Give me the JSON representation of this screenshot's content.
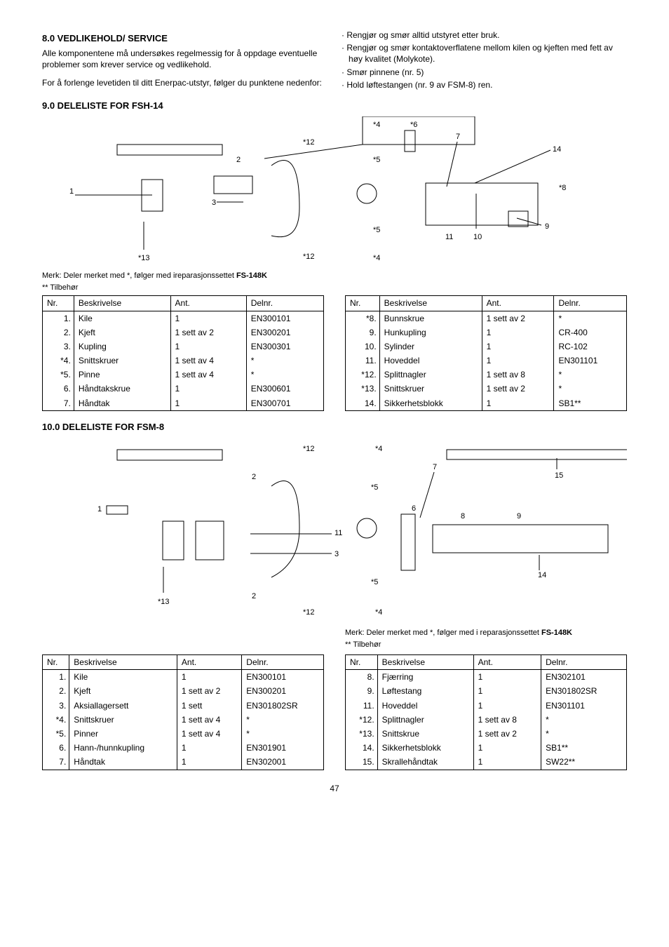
{
  "page_number": "47",
  "top": {
    "left": {
      "heading": "8.0 VEDLIKEHOLD/ SERVICE",
      "p1": "Alle komponentene må undersøkes regelmessig for å oppdage eventuelle problemer som krever service og vedlikehold.",
      "p2": "For å forlenge levetiden til ditt Enerpac-utstyr, følger du punktene nedenfor:"
    },
    "right": {
      "b1": "Rengjør og smør alltid utstyret etter bruk.",
      "b2": "Rengjør og smør kontaktoverflatene mellom kilen og kjeften med fett av høy kvalitet (Molykote).",
      "b3": "Smør pinnene (nr. 5)",
      "b4": "Hold løftestangen (nr. 9 av FSM-8) ren."
    }
  },
  "section9": {
    "heading": "9.0 DELELISTE FOR FSH-14",
    "note1_a": "Merk: Deler merket med *, følger med ireparasjonssettet ",
    "note1_b": "FS-148K",
    "note2": "** Tilbehør",
    "headers": {
      "nr": "Nr.",
      "besk": "Beskrivelse",
      "ant": "Ant.",
      "delnr": "Delnr."
    },
    "left_rows": [
      {
        "nr": "1.",
        "besk": "Kile",
        "ant": "1",
        "delnr": "EN300101"
      },
      {
        "nr": "2.",
        "besk": "Kjeft",
        "ant": "1 sett av 2",
        "delnr": "EN300201"
      },
      {
        "nr": "3.",
        "besk": "Kupling",
        "ant": "1",
        "delnr": "EN300301"
      },
      {
        "nr": "*4.",
        "besk": "Snittskruer",
        "ant": "1 sett av 4",
        "delnr": "*"
      },
      {
        "nr": "*5.",
        "besk": "Pinne",
        "ant": "1 sett av 4",
        "delnr": "*"
      },
      {
        "nr": "6.",
        "besk": "Håndtakskrue",
        "ant": "1",
        "delnr": "EN300601"
      },
      {
        "nr": "7.",
        "besk": "Håndtak",
        "ant": "1",
        "delnr": "EN300701"
      }
    ],
    "right_rows": [
      {
        "nr": "*8.",
        "besk": "Bunnskrue",
        "ant": "1 sett av 2",
        "delnr": "*"
      },
      {
        "nr": "9.",
        "besk": "Hunkupling",
        "ant": "1",
        "delnr": "CR-400"
      },
      {
        "nr": "10.",
        "besk": "Sylinder",
        "ant": "1",
        "delnr": "RC-102"
      },
      {
        "nr": "11.",
        "besk": "Hoveddel",
        "ant": "1",
        "delnr": "EN301101"
      },
      {
        "nr": "*12.",
        "besk": "Splittnagler",
        "ant": "1 sett av 8",
        "delnr": "*"
      },
      {
        "nr": "*13.",
        "besk": "Snittskruer",
        "ant": "1 sett av 2",
        "delnr": "*"
      },
      {
        "nr": "14.",
        "besk": "Sikkerhetsblokk",
        "ant": "1",
        "delnr": "SB1**"
      }
    ]
  },
  "section10": {
    "heading": "10.0 DELELISTE FOR FSM-8",
    "note1_a": "Merk: Deler merket med *, følger med i reparasjonssettet ",
    "note1_b": "FS-148K",
    "note2": "** Tilbehør",
    "headers": {
      "nr": "Nr.",
      "besk": "Beskrivelse",
      "ant": "Ant.",
      "delnr": "Delnr."
    },
    "left_rows": [
      {
        "nr": "1.",
        "besk": "Kile",
        "ant": "1",
        "delnr": "EN300101"
      },
      {
        "nr": "2.",
        "besk": "Kjeft",
        "ant": "1 sett av 2",
        "delnr": "EN300201"
      },
      {
        "nr": "3.",
        "besk": "Aksiallagersett",
        "ant": "1 sett",
        "delnr": "EN301802SR"
      },
      {
        "nr": "*4.",
        "besk": "Snittskruer",
        "ant": "1 sett av 4",
        "delnr": "*"
      },
      {
        "nr": "*5.",
        "besk": "Pinner",
        "ant": "1 sett av 4",
        "delnr": "*"
      },
      {
        "nr": "6.",
        "besk": "Hann-/hunnkupling",
        "ant": "1",
        "delnr": "EN301901"
      },
      {
        "nr": "7.",
        "besk": "Håndtak",
        "ant": "1",
        "delnr": "EN302001"
      }
    ],
    "right_rows": [
      {
        "nr": "8.",
        "besk": "Fjærring",
        "ant": "1",
        "delnr": "EN302101"
      },
      {
        "nr": "9.",
        "besk": "Løftestang",
        "ant": "1",
        "delnr": "EN301802SR"
      },
      {
        "nr": "11.",
        "besk": "Hoveddel",
        "ant": "1",
        "delnr": "EN301101"
      },
      {
        "nr": "*12.",
        "besk": "Splittnagler",
        "ant": "1 sett av 8",
        "delnr": "*"
      },
      {
        "nr": "*13.",
        "besk": "Snittskrue",
        "ant": "1 sett av 2",
        "delnr": "*"
      },
      {
        "nr": "14.",
        "besk": "Sikkerhetsblokk",
        "ant": "1",
        "delnr": "SB1**"
      },
      {
        "nr": "15.",
        "besk": "Skrallehåndtak",
        "ant": "1",
        "delnr": "SW22**"
      }
    ]
  }
}
